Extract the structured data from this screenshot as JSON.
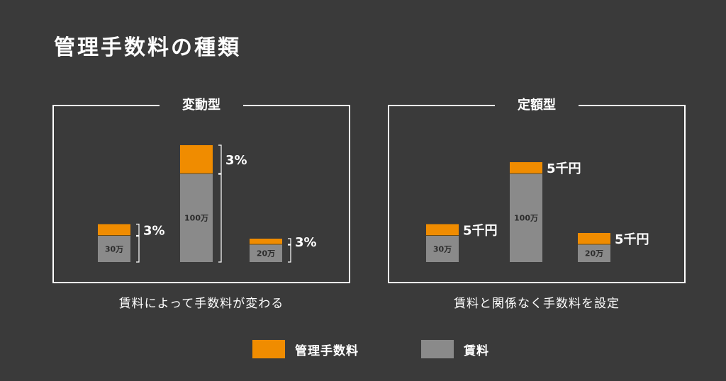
{
  "title": "管理手数料の種類",
  "colors": {
    "fee": "#f08c00",
    "rent": "#8a8a8a",
    "background": "#3a3a3a",
    "line": "#ffffff"
  },
  "chart_data": [
    {
      "type": "bar",
      "stacked": true,
      "title": "変動型",
      "caption": "賃料によって手数料が変わる",
      "categories": [
        "30万",
        "100万",
        "20万"
      ],
      "series": [
        {
          "name": "賃料",
          "values": [
            300000,
            1000000,
            200000
          ]
        },
        {
          "name": "管理手数料",
          "values": [
            9000,
            30000,
            6000
          ],
          "labels": [
            "3%",
            "3%",
            "3%"
          ]
        }
      ],
      "grid": false
    },
    {
      "type": "bar",
      "stacked": true,
      "title": "定額型",
      "caption": "賃料と関係なく手数料を設定",
      "categories": [
        "30万",
        "100万",
        "20万"
      ],
      "series": [
        {
          "name": "賃料",
          "values": [
            300000,
            1000000,
            200000
          ]
        },
        {
          "name": "管理手数料",
          "values": [
            5000,
            5000,
            5000
          ],
          "labels": [
            "5千円",
            "5千円",
            "5千円"
          ]
        }
      ],
      "grid": false
    }
  ],
  "legend": [
    {
      "name": "管理手数料",
      "color": "#f08c00"
    },
    {
      "name": "賃料",
      "color": "#8a8a8a"
    }
  ]
}
